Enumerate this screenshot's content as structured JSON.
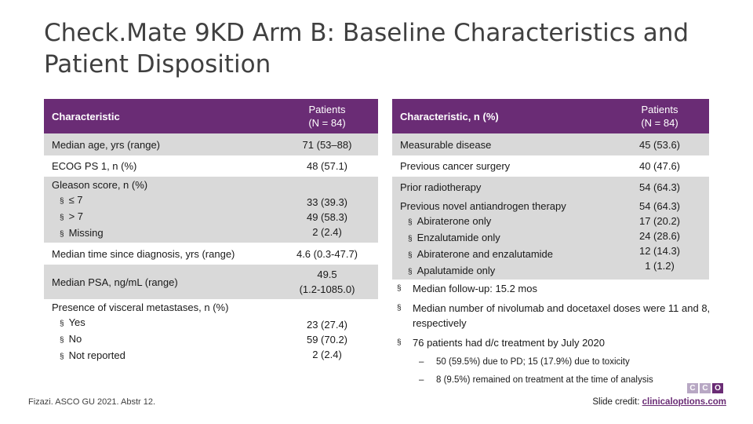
{
  "title": {
    "line1": "Check.Mate 9KD Arm B: Baseline Characteristics and",
    "line2": "Patient Disposition"
  },
  "left_table": {
    "header": {
      "col1": "Characteristic",
      "col2_line1": "Patients",
      "col2_line2": "(N = 84)"
    },
    "rows": [
      {
        "label": "Median age, yrs (range)",
        "value": "71 (53–88)"
      },
      {
        "label": "ECOG PS 1, n (%)",
        "value": "48 (57.1)"
      },
      {
        "label": "Gleason score, n (%)",
        "subs": [
          "≤ 7",
          "> 7",
          "Missing"
        ],
        "values": [
          "33 (39.3)",
          "49 (58.3)",
          "2 (2.4)"
        ]
      },
      {
        "label": "Median time since diagnosis, yrs (range)",
        "value": "4.6 (0.3-47.7)"
      },
      {
        "label": "Median PSA, ng/mL (range)",
        "value_line1": "49.5",
        "value_line2": "(1.2-1085.0)"
      },
      {
        "label": "Presence of visceral metastases, n (%)",
        "subs": [
          "Yes",
          "No",
          "Not reported"
        ],
        "values": [
          "23 (27.4)",
          "59 (70.2)",
          "2 (2.4)"
        ]
      }
    ]
  },
  "right_table": {
    "header": {
      "col1": "Characteristic, n (%)",
      "col2_line1": "Patients",
      "col2_line2": "(N = 84)"
    },
    "rows": [
      {
        "label": "Measurable disease",
        "value": "45 (53.6)"
      },
      {
        "label": "Previous cancer surgery",
        "value": "40 (47.6)"
      },
      {
        "label": "Prior radiotherapy",
        "value": "54 (64.3)"
      },
      {
        "label": "Previous novel antiandrogen therapy",
        "subs": [
          "Abiraterone only",
          "Enzalutamide only",
          "Abiraterone and enzalutamide",
          "Apalutamide only"
        ],
        "value": "54 (64.3)",
        "values": [
          "17 (20.2)",
          "24 (28.6)",
          "12 (14.3)",
          "1 (1.2)"
        ]
      }
    ]
  },
  "bullets": [
    "Median follow-up: 15.2 mos",
    "Median number of nivolumab and docetaxel doses were 11 and 8, respectively",
    "76 patients had d/c treatment by July 2020"
  ],
  "sub_bullets": [
    "50 (59.5%) due to PD; 15 (17.9%) due to toxicity",
    "8 (9.5%) remained on treatment at the time of analysis"
  ],
  "bullet_char": "§",
  "dash_char": "–",
  "citation": "Fizazi. ASCO GU 2021. Abstr 12.",
  "credit": {
    "label": "Slide credit:",
    "link": "clinicaloptions.com"
  },
  "logo_letters": [
    "C",
    "C",
    "O"
  ],
  "colors": {
    "header_bg": "#6a2c75",
    "row_grey": "#d9d9d9",
    "title": "#404040"
  }
}
